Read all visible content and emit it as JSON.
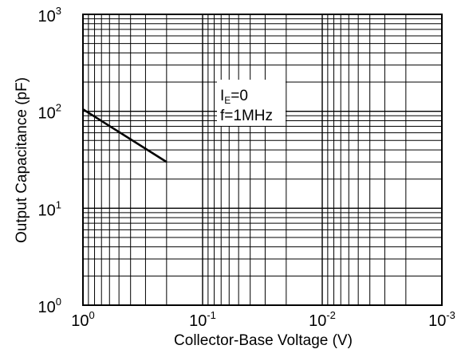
{
  "chart_data": {
    "type": "line",
    "title": "",
    "xlabel": "Collector-Base Voltage (V)",
    "ylabel": "Output Capacitance (pF)",
    "x_scale": "log",
    "y_scale": "log",
    "x_reversed": true,
    "xlim": [
      1,
      0.001
    ],
    "ylim": [
      1,
      1000
    ],
    "grid": true,
    "x_ticks": [
      {
        "value": 1,
        "base": "10",
        "exp": "0"
      },
      {
        "value": 0.1,
        "base": "10",
        "exp": "-1"
      },
      {
        "value": 0.01,
        "base": "10",
        "exp": "-2"
      },
      {
        "value": 0.001,
        "base": "10",
        "exp": "-3"
      }
    ],
    "y_ticks": [
      {
        "value": 1,
        "base": "10",
        "exp": "0"
      },
      {
        "value": 10,
        "base": "10",
        "exp": "1"
      },
      {
        "value": 100,
        "base": "10",
        "exp": "2"
      },
      {
        "value": 1000,
        "base": "10",
        "exp": "3"
      }
    ],
    "series": [
      {
        "x": [
          1,
          0.2
        ],
        "y": [
          105,
          30
        ]
      }
    ],
    "annotations": {
      "line1_main": "I",
      "line1_sub": "E",
      "line1_rest": "=0",
      "line2": "f=1MHz"
    }
  }
}
